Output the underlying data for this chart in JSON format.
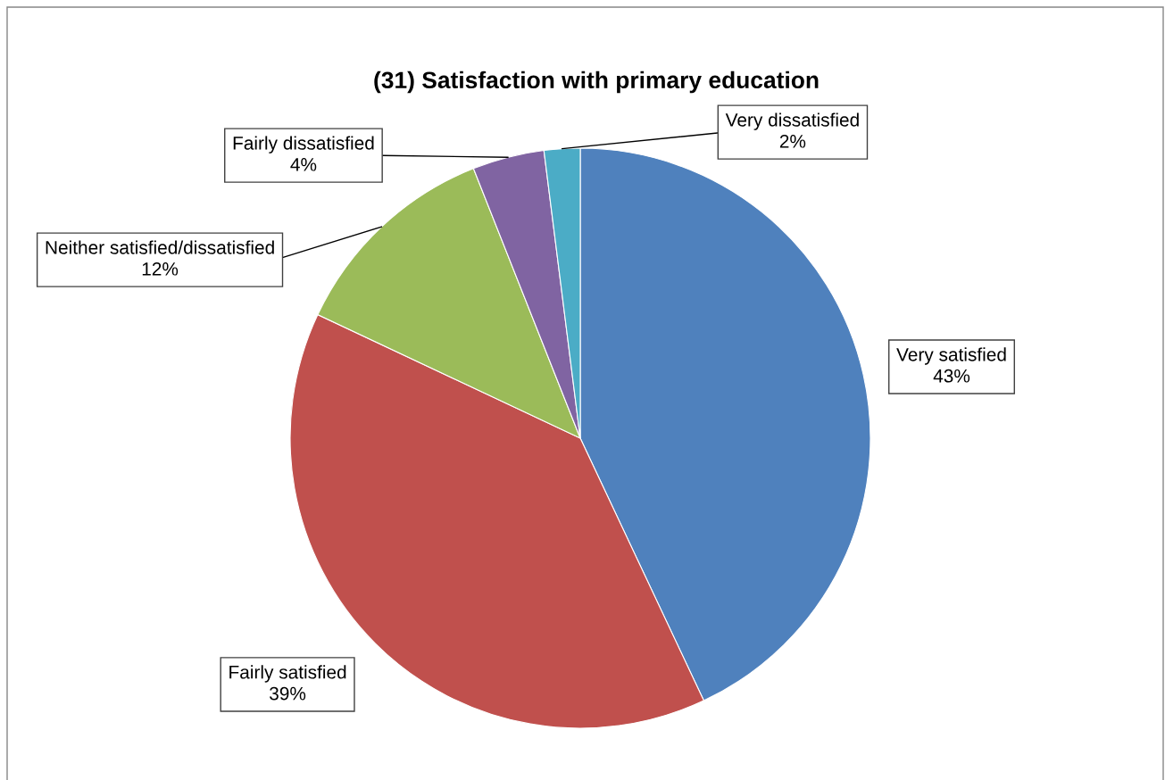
{
  "chart_data": {
    "type": "pie",
    "title": "(31) Satisfaction with primary education",
    "categories": [
      "Very satisfied",
      "Fairly satisfied",
      "Neither satisfied/dissatisfied",
      "Fairly dissatisfied",
      "Very dissatisfied"
    ],
    "values": [
      43,
      39,
      12,
      4,
      2
    ],
    "colors": [
      "#4f81bd",
      "#c0504d",
      "#9bbb59",
      "#8064a2",
      "#4bacc6"
    ],
    "value_labels": [
      "43%",
      "39%",
      "12%",
      "4%",
      "2%"
    ]
  }
}
